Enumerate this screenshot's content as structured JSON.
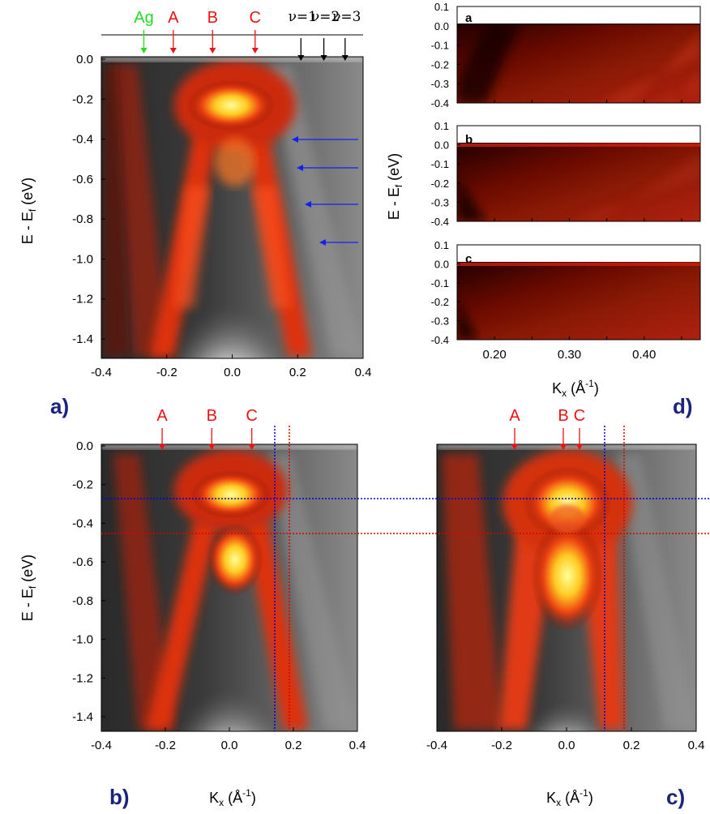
{
  "figure": {
    "panel_labels": {
      "a": "a)",
      "b": "b)",
      "c": "c)",
      "d": "d)"
    },
    "ylabel_main": "E - E",
    "ylabel_sub": "f",
    "ylabel_unit": " (eV)",
    "xlabel_main": "K",
    "xlabel_sub": "x",
    "xlabel_unit_open": " (Å",
    "xlabel_sup": "-1",
    "xlabel_unit_close": ")",
    "y_ticks_main": [
      "0.0",
      "-0.2",
      "-0.4",
      "-0.6",
      "-0.8",
      "-1.0",
      "-1.2",
      "-1.4"
    ],
    "x_ticks_main": [
      "-0.4",
      "-0.2",
      "0.0",
      "0.2",
      "0.4"
    ],
    "y_ticks_small": [
      "0.1",
      "0.0",
      "-0.1",
      "-0.2",
      "-0.3",
      "-0.4"
    ],
    "x_ticks_small": [
      "0.20",
      "0.30",
      "0.40"
    ],
    "subpanels_d": [
      "a",
      "b",
      "c"
    ],
    "markers_a": [
      {
        "label": "Ag",
        "color": "#22dd22",
        "k": -0.27
      },
      {
        "label": "A",
        "color": "#ee1111",
        "k": -0.18
      },
      {
        "label": "B",
        "color": "#ee1111",
        "k": -0.06
      },
      {
        "label": "C",
        "color": "#ee1111",
        "k": 0.07
      }
    ],
    "nu_markers": [
      {
        "label": "ν=1",
        "k": 0.21
      },
      {
        "label": "ν=2",
        "k": 0.28
      },
      {
        "label": "ν=3",
        "k": 0.345
      }
    ],
    "markers_b": [
      {
        "label": "A",
        "k": -0.21
      },
      {
        "label": "B",
        "k": -0.055
      },
      {
        "label": "C",
        "k": 0.07
      }
    ],
    "markers_c": [
      {
        "label": "A",
        "k": -0.16
      },
      {
        "label": "B",
        "k": -0.01
      },
      {
        "label": "C",
        "k": 0.04
      }
    ],
    "colors": {
      "panel_label": "#1a237e",
      "marker_red": "#ee1111",
      "marker_green": "#22dd22",
      "guide_blue": "#0000dd",
      "guide_red": "#dd0000"
    }
  }
}
